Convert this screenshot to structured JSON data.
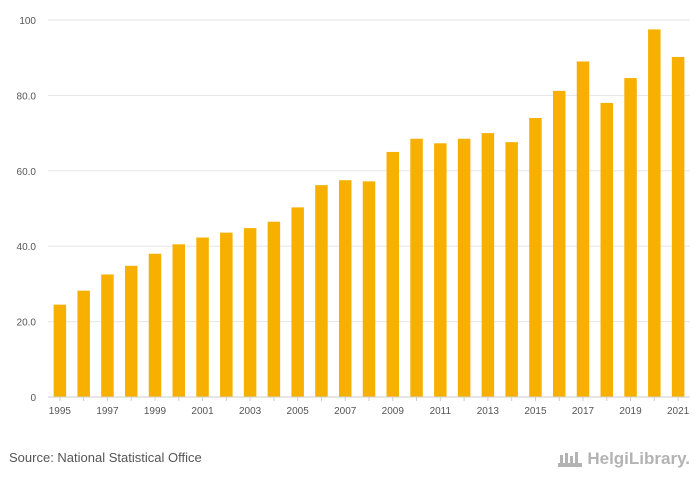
{
  "chart_data": {
    "type": "bar",
    "title": "",
    "xlabel": "",
    "ylabel": "",
    "ylim": [
      0,
      100
    ],
    "yticks": [
      "0",
      "20.0",
      "40.0",
      "60.0",
      "80.0",
      "100"
    ],
    "ytick_values": [
      0,
      20,
      40,
      60,
      80,
      100
    ],
    "categories": [
      "1995",
      "1996",
      "1997",
      "1998",
      "1999",
      "2000",
      "2001",
      "2002",
      "2003",
      "2004",
      "2005",
      "2006",
      "2007",
      "2008",
      "2009",
      "2010",
      "2011",
      "2012",
      "2013",
      "2014",
      "2015",
      "2016",
      "2017",
      "2018",
      "2019",
      "2020",
      "2021"
    ],
    "xtick_labels": [
      "1995",
      "",
      "1997",
      "",
      "1999",
      "",
      "2001",
      "",
      "2003",
      "",
      "2005",
      "",
      "2007",
      "",
      "2009",
      "",
      "2011",
      "",
      "2013",
      "",
      "2015",
      "",
      "2017",
      "",
      "2019",
      "",
      "2021"
    ],
    "values": [
      24.5,
      28.2,
      32.5,
      34.8,
      38.0,
      40.5,
      42.3,
      43.6,
      44.8,
      46.5,
      50.3,
      56.2,
      57.5,
      57.2,
      65.0,
      68.5,
      67.3,
      68.5,
      70.0,
      67.6,
      74.0,
      81.2,
      89.0,
      78.0,
      84.6,
      97.5,
      90.2
    ],
    "bar_color": "#f7b000",
    "grid": true
  },
  "footer": {
    "source": "Source: National Statistical Office",
    "brand": "HelgiLibrary."
  }
}
